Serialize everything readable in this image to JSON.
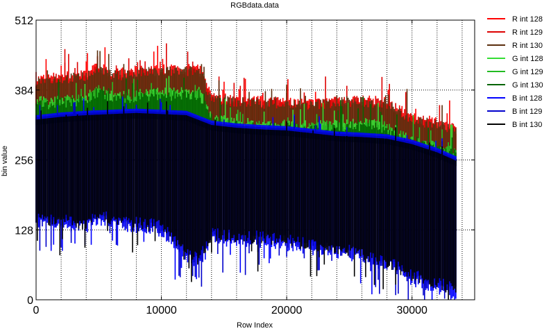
{
  "chart_data": {
    "type": "line",
    "title": "RGBdata.data",
    "xlabel": "Row Index",
    "ylabel": "bin value",
    "xlim": [
      0,
      35000
    ],
    "ylim": [
      0,
      512
    ],
    "x_ticks": [
      0,
      10000,
      20000,
      30000
    ],
    "x_tick_labels": [
      "0",
      "10000",
      "20000",
      "30000"
    ],
    "x_grid": [
      2000,
      4000,
      6000,
      8000,
      10000,
      12000,
      14000,
      16000,
      18000,
      20000,
      22000,
      24000,
      26000,
      28000,
      30000,
      32000,
      34000
    ],
    "y_ticks": [
      0,
      128,
      256,
      384,
      512
    ],
    "y_tick_labels": [
      "0",
      "128",
      "256",
      "384",
      "512"
    ],
    "y_grid": [
      128,
      256,
      384
    ],
    "grid": true,
    "legend_position": "right",
    "data_end_x": 33500,
    "series": [
      {
        "name": "R int 128",
        "color": "#ff0000",
        "band": "upper",
        "offset": 4,
        "x": [
          0,
          2000,
          4000,
          5000,
          6000,
          8000,
          10000,
          12000,
          13000,
          14000,
          16000,
          18000,
          20000,
          22000,
          24000,
          26000,
          28000,
          30000,
          32000,
          33500
        ],
        "values": [
          400,
          405,
          408,
          425,
          410,
          415,
          418,
          418,
          420,
          370,
          362,
          360,
          358,
          356,
          362,
          362,
          358,
          330,
          320,
          310
        ]
      },
      {
        "name": "R int 129",
        "color": "#dd0000",
        "band": "upper",
        "offset": 2,
        "x": [
          0,
          2000,
          4000,
          5000,
          6000,
          8000,
          10000,
          12000,
          13000,
          14000,
          16000,
          18000,
          20000,
          22000,
          24000,
          26000,
          28000,
          30000,
          32000,
          33500
        ],
        "values": [
          400,
          405,
          408,
          425,
          410,
          415,
          418,
          418,
          420,
          370,
          362,
          360,
          358,
          356,
          362,
          362,
          358,
          330,
          320,
          310
        ]
      },
      {
        "name": "R int 130",
        "color": "#5a2d0c",
        "band": "upper",
        "offset": 0,
        "x": [
          0,
          2000,
          4000,
          5000,
          6000,
          8000,
          10000,
          12000,
          13000,
          14000,
          16000,
          18000,
          20000,
          22000,
          24000,
          26000,
          28000,
          30000,
          32000,
          33500
        ],
        "values": [
          400,
          405,
          408,
          425,
          410,
          415,
          418,
          418,
          420,
          370,
          362,
          360,
          358,
          356,
          362,
          362,
          358,
          330,
          320,
          310
        ]
      },
      {
        "name": "G int 128",
        "color": "#33dd33",
        "band": "upper",
        "offset": -38,
        "x": [
          0,
          2000,
          4000,
          5000,
          6000,
          8000,
          10000,
          12000,
          13000,
          14000,
          16000,
          18000,
          20000,
          22000,
          24000,
          26000,
          28000,
          30000,
          32000,
          33500
        ],
        "values": [
          400,
          405,
          408,
          425,
          410,
          415,
          418,
          418,
          420,
          370,
          362,
          360,
          358,
          356,
          362,
          362,
          358,
          330,
          320,
          310
        ]
      },
      {
        "name": "G int 129",
        "color": "#22bb22",
        "band": "upper",
        "offset": -41,
        "x": [
          0,
          2000,
          4000,
          5000,
          6000,
          8000,
          10000,
          12000,
          13000,
          14000,
          16000,
          18000,
          20000,
          22000,
          24000,
          26000,
          28000,
          30000,
          32000,
          33500
        ],
        "values": [
          400,
          405,
          408,
          425,
          410,
          415,
          418,
          418,
          420,
          370,
          362,
          360,
          358,
          356,
          362,
          362,
          358,
          330,
          320,
          310
        ]
      },
      {
        "name": "G int 130",
        "color": "#006400",
        "band": "upper",
        "offset": -44,
        "x": [
          0,
          2000,
          4000,
          5000,
          6000,
          8000,
          10000,
          12000,
          13000,
          14000,
          16000,
          18000,
          20000,
          22000,
          24000,
          26000,
          28000,
          30000,
          32000,
          33500
        ],
        "values": [
          400,
          405,
          408,
          425,
          410,
          415,
          418,
          418,
          420,
          370,
          362,
          360,
          358,
          356,
          362,
          362,
          358,
          330,
          320,
          310
        ]
      },
      {
        "name": "B int 128",
        "color": "#0000ff",
        "band": "lower",
        "offset": -8,
        "x": [
          0,
          2000,
          4000,
          5000,
          6000,
          8000,
          10000,
          12000,
          13000,
          14000,
          16000,
          18000,
          20000,
          22000,
          24000,
          26000,
          28000,
          30000,
          32000,
          33500
        ],
        "values": [
          150,
          145,
          140,
          155,
          150,
          140,
          135,
          85,
          75,
          120,
          115,
          115,
          110,
          100,
          95,
          85,
          70,
          45,
          30,
          20
        ]
      },
      {
        "name": "B int 129",
        "color": "#0000cc",
        "band": "lower",
        "offset": -4,
        "x": [
          0,
          2000,
          4000,
          5000,
          6000,
          8000,
          10000,
          12000,
          13000,
          14000,
          16000,
          18000,
          20000,
          22000,
          24000,
          26000,
          28000,
          30000,
          32000,
          33500
        ],
        "values": [
          150,
          145,
          140,
          155,
          150,
          140,
          135,
          85,
          75,
          120,
          115,
          115,
          110,
          100,
          95,
          85,
          70,
          45,
          30,
          20
        ]
      },
      {
        "name": "B int 130",
        "color": "#000000",
        "band": "lower",
        "offset": 0,
        "x": [
          0,
          2000,
          4000,
          5000,
          6000,
          8000,
          10000,
          12000,
          13000,
          14000,
          16000,
          18000,
          20000,
          22000,
          24000,
          26000,
          28000,
          30000,
          32000,
          33500
        ],
        "values": [
          150,
          145,
          140,
          155,
          150,
          140,
          135,
          85,
          75,
          120,
          115,
          115,
          110,
          100,
          95,
          85,
          70,
          45,
          30,
          20
        ]
      }
    ],
    "black_band_top": {
      "x": [
        0,
        2000,
        4000,
        6000,
        8000,
        10000,
        12000,
        14000,
        16000,
        18000,
        20000,
        22000,
        24000,
        26000,
        28000,
        30000,
        32000,
        33500
      ],
      "values": [
        330,
        335,
        338,
        340,
        342,
        340,
        338,
        320,
        315,
        312,
        310,
        305,
        300,
        298,
        295,
        285,
        270,
        255
      ]
    }
  }
}
